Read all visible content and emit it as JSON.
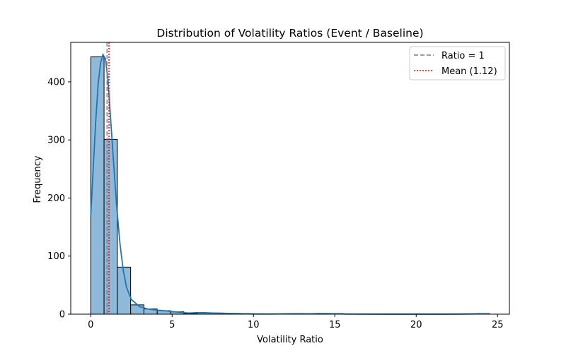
{
  "chart_data": {
    "type": "histogram",
    "title": "Distribution of Volatility Ratios (Event / Baseline)",
    "xlabel": "Volatility Ratio",
    "ylabel": "Frequency",
    "xlim": [
      -1.23,
      25.73
    ],
    "ylim": [
      0,
      468
    ],
    "xticks": [
      0,
      5,
      10,
      15,
      20,
      25
    ],
    "yticks": [
      0,
      100,
      200,
      300,
      400
    ],
    "bin_width": 0.817,
    "bins": [
      {
        "x0": 0.0,
        "count": 443
      },
      {
        "x0": 0.817,
        "count": 301
      },
      {
        "x0": 1.634,
        "count": 81
      },
      {
        "x0": 2.451,
        "count": 16
      },
      {
        "x0": 3.268,
        "count": 9
      },
      {
        "x0": 4.085,
        "count": 6
      },
      {
        "x0": 4.902,
        "count": 4
      },
      {
        "x0": 5.719,
        "count": 1
      },
      {
        "x0": 6.536,
        "count": 2
      },
      {
        "x0": 7.353,
        "count": 2
      },
      {
        "x0": 8.17,
        "count": 1
      },
      {
        "x0": 8.987,
        "count": 1
      },
      {
        "x0": 9.804,
        "count": 0
      },
      {
        "x0": 10.621,
        "count": 0
      },
      {
        "x0": 11.438,
        "count": 0
      },
      {
        "x0": 12.255,
        "count": 1
      },
      {
        "x0": 13.072,
        "count": 0
      },
      {
        "x0": 13.889,
        "count": 1
      },
      {
        "x0": 14.706,
        "count": 1
      },
      {
        "x0": 15.523,
        "count": 0
      },
      {
        "x0": 16.34,
        "count": 0
      },
      {
        "x0": 17.157,
        "count": 0
      },
      {
        "x0": 17.974,
        "count": 0
      },
      {
        "x0": 18.791,
        "count": 0
      },
      {
        "x0": 19.608,
        "count": 0
      },
      {
        "x0": 20.425,
        "count": 0
      },
      {
        "x0": 21.242,
        "count": 0
      },
      {
        "x0": 22.059,
        "count": 0
      },
      {
        "x0": 22.876,
        "count": 0
      },
      {
        "x0": 23.693,
        "count": 1
      }
    ],
    "kde": [
      [
        0.0,
        170
      ],
      [
        0.15,
        250
      ],
      [
        0.3,
        330
      ],
      [
        0.45,
        395
      ],
      [
        0.6,
        432
      ],
      [
        0.75,
        447
      ],
      [
        0.9,
        440
      ],
      [
        1.05,
        405
      ],
      [
        1.2,
        345
      ],
      [
        1.4,
        262
      ],
      [
        1.6,
        183
      ],
      [
        1.8,
        120
      ],
      [
        2.0,
        75
      ],
      [
        2.2,
        46
      ],
      [
        2.5,
        25
      ],
      [
        3.0,
        13
      ],
      [
        3.5,
        9
      ],
      [
        4.0,
        7
      ],
      [
        4.5,
        6
      ],
      [
        5.0,
        4.5
      ],
      [
        5.5,
        3
      ],
      [
        6.0,
        2
      ],
      [
        6.5,
        2.5
      ],
      [
        7.0,
        2.5
      ],
      [
        7.5,
        2
      ],
      [
        8.0,
        1.5
      ],
      [
        9.0,
        1
      ],
      [
        10.0,
        0.4
      ],
      [
        11.0,
        0.3
      ],
      [
        12.0,
        0.6
      ],
      [
        12.5,
        0.7
      ],
      [
        13.5,
        0.6
      ],
      [
        14.0,
        1.0
      ],
      [
        14.5,
        1.0
      ],
      [
        15.0,
        0.6
      ],
      [
        16.0,
        0.2
      ],
      [
        18.0,
        0.1
      ],
      [
        20.0,
        0.05
      ],
      [
        22.0,
        0.1
      ],
      [
        23.5,
        0.4
      ],
      [
        24.0,
        0.8
      ],
      [
        24.5,
        0.6
      ]
    ],
    "reference_lines": [
      {
        "name": "Ratio = 1",
        "x": 1.0,
        "color": "#7f7f7f",
        "style": "dashed"
      },
      {
        "name": "Mean (1.12)",
        "x": 1.12,
        "color": "#ff0000",
        "style": "dotted"
      }
    ],
    "legend": {
      "placement": "top-right",
      "entries": [
        "Ratio = 1",
        "Mean (1.12)"
      ]
    },
    "colors": {
      "bar_fill": "#8fb9d9",
      "bar_edge": "#000000",
      "kde_line": "#1f77b4"
    },
    "grid": false
  }
}
